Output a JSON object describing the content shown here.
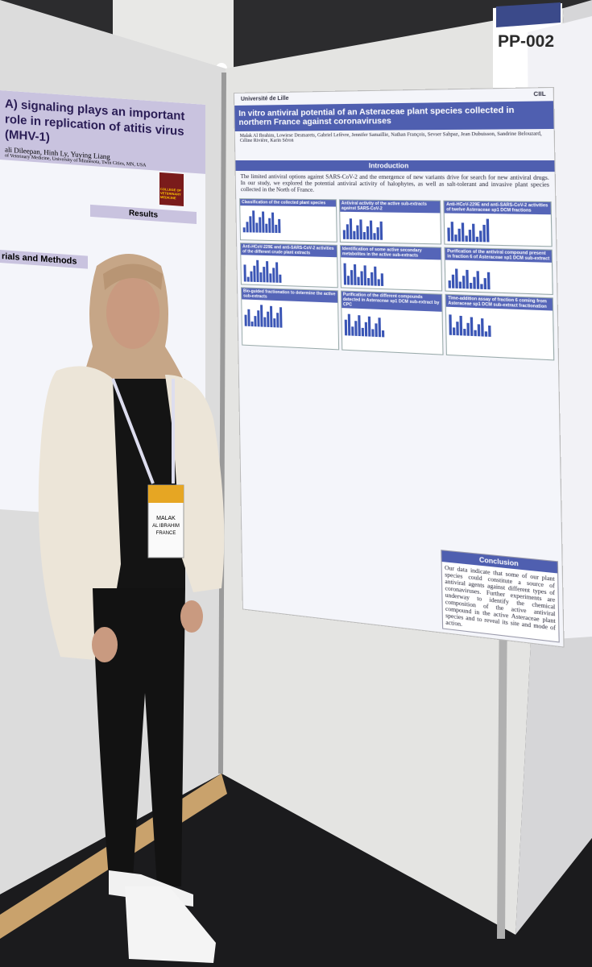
{
  "booth_label": "PP-002",
  "main_poster": {
    "logos": [
      "Université de Lille",
      "CIIL"
    ],
    "title": "In vitro antiviral potential of an Asteraceae plant species collected in northern France against coronaviruses",
    "authors": "Malak Al Ibrahim, Lowiese Desmarets, Gabriel Lefèvre, Jennifer Samaillie, Nathan François, Sevser Sahpaz, Jean Dubuisson, Sandrine Belouzard, Céline Rivière, Karin Séron",
    "introduction_heading": "Introduction",
    "introduction": "The limited antiviral options against SARS-CoV-2 and the emergence of new variants drive for search for new antiviral drugs. In our study, we explored the potential antiviral activity of halophytes, as well as salt-tolerant and invasive plant species collected in the North of France.",
    "sections": [
      "Classification of the collected plant species",
      "Antiviral activity of the active sub-extracts against SARS-CoV-2",
      "Anti-HCoV-229E and anti-SARS-CoV-2 activities of twelve Asteraceae sp1 DCM fractions",
      "Anti-HCoV-229E and anti-SARS-CoV-2 activities of the different crude plant extracts",
      "Identification of some active secondary metabolites in the active sub-extracts",
      "Purification of the antiviral compound present in fraction 6 of Asteraceae sp1 DCM sub-extract",
      "Bio-guided fractionation to determine the active sub-extracts",
      "Purification of the different compounds detected in Asteraceae sp1 DCM sub-extract by CPC",
      "Time-addition assay of fraction 6 coming from Asteraceae sp1 DCM sub-extract fractionation"
    ],
    "conclusion_heading": "Conclusion",
    "conclusion": "Our data indicate that some of our plant species could constitute a source of antiviral agents against different types of coronaviruses. Further experiments are underway to identify the chemical composition of the active antiviral compound in the active Asteraceae plant species and to reveal its site and mode of action."
  },
  "left_poster": {
    "title": "A) signaling plays an important role in replication of atitis virus (MHV-1)",
    "authors": "ali Dileepan, Hinh Ly, Yuying Liang",
    "affiliation": "of Veterinary Medicine, University of Minnesota, Twin Cities, MN, USA",
    "logo": "COLLEGE OF VETERINARY MEDICINE",
    "results_heading": "Results",
    "methods_heading": "rials and Methods"
  },
  "badge": {
    "first_name": "MALAK",
    "last_name": "AL IBRAHIM",
    "country": "FRANCE"
  }
}
